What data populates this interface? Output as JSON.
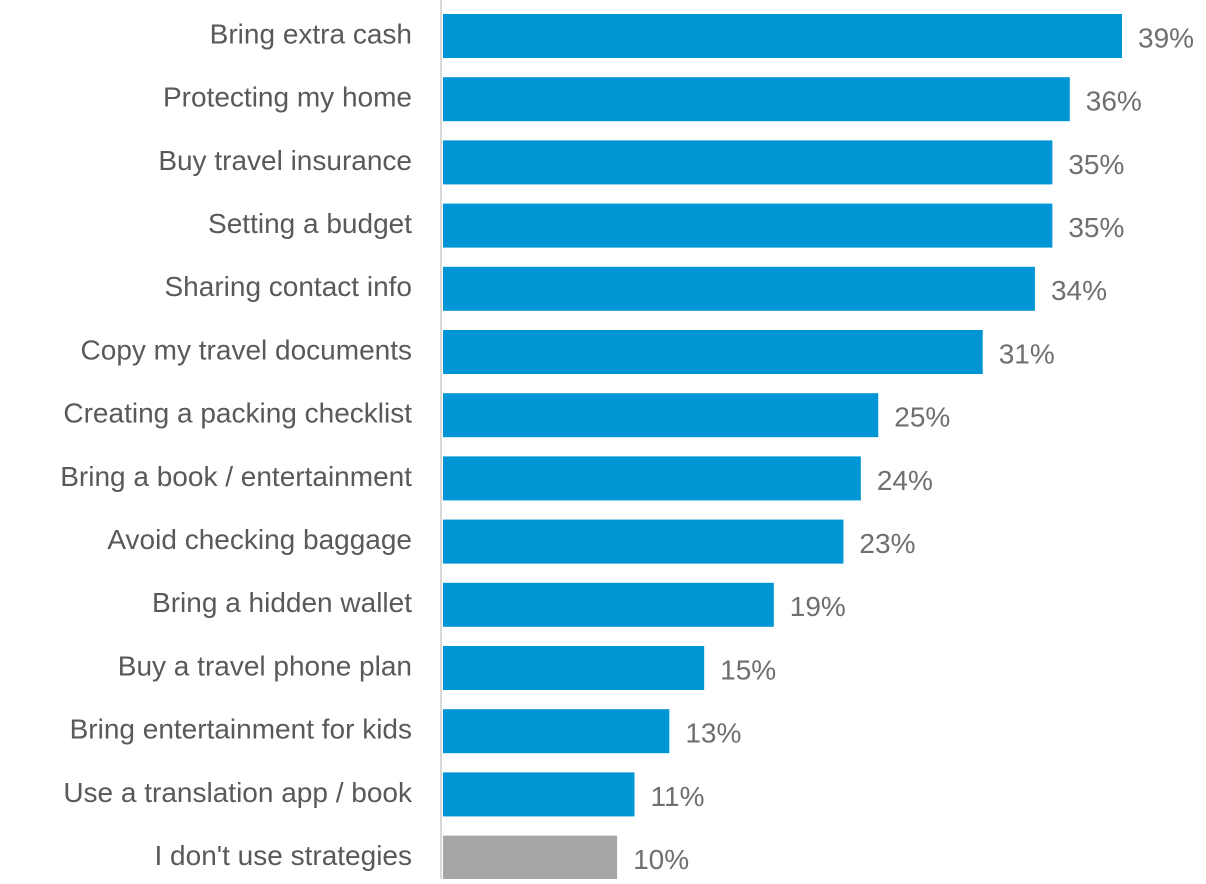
{
  "chart_data": {
    "type": "bar",
    "orientation": "horizontal",
    "categories": [
      "Bring extra cash",
      "Protecting my home",
      "Buy travel insurance",
      "Setting a budget",
      "Sharing contact info",
      "Copy my travel documents",
      "Creating a packing checklist",
      "Bring a book / entertainment",
      "Avoid checking baggage",
      "Bring a hidden wallet",
      "Buy a travel phone plan",
      "Bring entertainment for kids",
      "Use a translation app / book",
      "I don't use strategies"
    ],
    "values": [
      39,
      36,
      35,
      35,
      34,
      31,
      25,
      24,
      23,
      19,
      15,
      13,
      11,
      10
    ],
    "value_labels": [
      "39%",
      "36%",
      "35%",
      "35%",
      "34%",
      "31%",
      "25%",
      "24%",
      "23%",
      "19%",
      "15%",
      "13%",
      "11%",
      "10%"
    ],
    "colors": [
      "#0096d6",
      "#0096d6",
      "#0096d6",
      "#0096d6",
      "#0096d6",
      "#0096d6",
      "#0096d6",
      "#0096d6",
      "#0096d6",
      "#0096d6",
      "#0096d6",
      "#0096d6",
      "#0096d6",
      "#a6a6a6"
    ]
  }
}
